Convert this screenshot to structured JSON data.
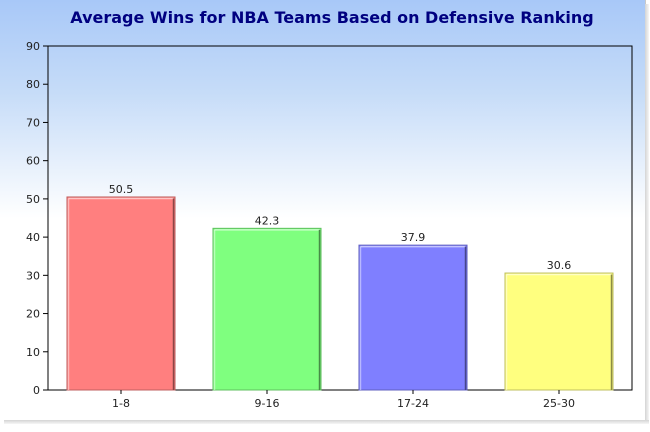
{
  "chart_data": {
    "type": "bar",
    "title": "Average Wins for NBA Teams Based on Defensive Ranking",
    "xlabel": "",
    "ylabel": "",
    "categories": [
      "1-8",
      "9-16",
      "17-24",
      "25-30"
    ],
    "values": [
      50.5,
      42.3,
      37.9,
      30.6
    ],
    "value_labels": [
      "50.5",
      "42.3",
      "37.9",
      "30.6"
    ],
    "bar_colors": [
      "#ff7f7f",
      "#7fff7f",
      "#7f7fff",
      "#ffff7f"
    ],
    "ylim": [
      0,
      90
    ],
    "yticks": [
      0,
      10,
      20,
      30,
      40,
      50,
      60,
      70,
      80,
      90
    ],
    "grid": false,
    "legend": "none"
  },
  "colors": {
    "title": "#000080",
    "background_top": "#a8c8f8",
    "background_bottom": "#ffffff"
  }
}
